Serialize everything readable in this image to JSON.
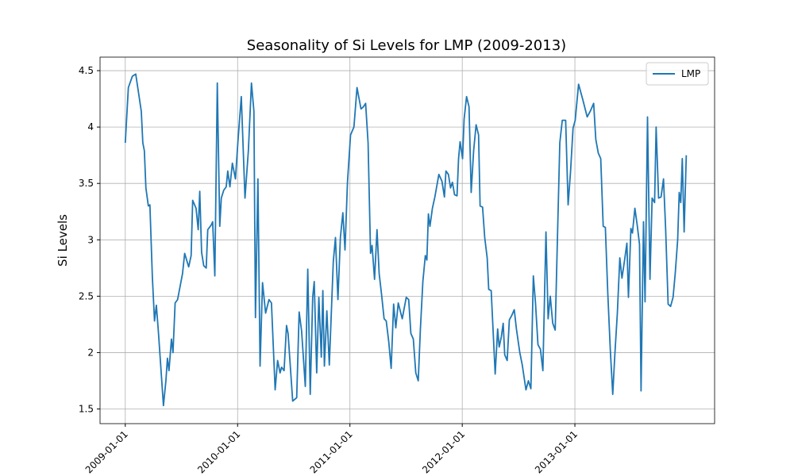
{
  "chart_data": {
    "type": "line",
    "title": "Seasonality of Si Levels for LMP (2009-2013)",
    "y_label": "Si Levels",
    "x": [
      "2009-01-01",
      "2009-01-11",
      "2009-01-24",
      "2009-02-04",
      "2009-02-22",
      "2009-02-27",
      "2009-03-04",
      "2009-03-09",
      "2009-03-17",
      "2009-03-22",
      "2009-03-30",
      "2009-04-06",
      "2009-04-12",
      "2009-04-19",
      "2009-05-05",
      "2009-05-13",
      "2009-05-18",
      "2009-05-23",
      "2009-05-31",
      "2009-06-05",
      "2009-06-12",
      "2009-06-20",
      "2009-07-06",
      "2009-07-13",
      "2009-07-26",
      "2009-08-03",
      "2009-08-08",
      "2009-08-19",
      "2009-08-26",
      "2009-08-31",
      "2009-09-06",
      "2009-09-13",
      "2009-09-21",
      "2009-09-26",
      "2009-10-07",
      "2009-10-12",
      "2009-10-19",
      "2009-10-27",
      "2009-11-04",
      "2009-11-09",
      "2009-11-17",
      "2009-11-25",
      "2009-11-30",
      "2009-12-07",
      "2009-12-15",
      "2009-12-25",
      "2010-01-02",
      "2010-01-13",
      "2010-01-25",
      "2010-02-05",
      "2010-02-15",
      "2010-02-23",
      "2010-02-28",
      "2010-03-08",
      "2010-03-15",
      "2010-03-23",
      "2010-04-02",
      "2010-04-13",
      "2010-04-21",
      "2010-05-03",
      "2010-05-11",
      "2010-05-19",
      "2010-05-24",
      "2010-06-01",
      "2010-06-09",
      "2010-06-14",
      "2010-06-29",
      "2010-07-12",
      "2010-07-20",
      "2010-07-28",
      "2010-08-09",
      "2010-08-17",
      "2010-08-25",
      "2010-09-02",
      "2010-09-07",
      "2010-09-15",
      "2010-09-22",
      "2010-09-30",
      "2010-10-05",
      "2010-10-10",
      "2010-10-18",
      "2010-10-26",
      "2010-11-08",
      "2010-11-15",
      "2010-11-23",
      "2010-12-01",
      "2010-12-09",
      "2010-12-16",
      "2010-12-24",
      "2011-01-03",
      "2011-01-14",
      "2011-01-24",
      "2011-02-06",
      "2011-02-14",
      "2011-02-21",
      "2011-03-01",
      "2011-03-09",
      "2011-03-14",
      "2011-03-22",
      "2011-03-30",
      "2011-04-06",
      "2011-04-14",
      "2011-04-22",
      "2011-04-29",
      "2011-05-07",
      "2011-05-15",
      "2011-05-23",
      "2011-05-30",
      "2011-06-07",
      "2011-06-20",
      "2011-07-03",
      "2011-07-11",
      "2011-07-18",
      "2011-07-26",
      "2011-08-03",
      "2011-08-11",
      "2011-08-18",
      "2011-08-26",
      "2011-09-03",
      "2011-09-08",
      "2011-09-13",
      "2011-09-18",
      "2011-09-26",
      "2011-10-04",
      "2011-10-17",
      "2011-10-27",
      "2011-11-04",
      "2011-11-09",
      "2011-11-17",
      "2011-11-24",
      "2011-11-30",
      "2011-12-07",
      "2011-12-15",
      "2011-12-20",
      "2011-12-25",
      "2012-01-02",
      "2012-01-07",
      "2012-01-15",
      "2012-01-23",
      "2012-01-30",
      "2012-02-07",
      "2012-02-15",
      "2012-02-23",
      "2012-02-28",
      "2012-03-07",
      "2012-03-14",
      "2012-03-22",
      "2012-03-27",
      "2012-04-04",
      "2012-04-17",
      "2012-04-25",
      "2012-04-30",
      "2012-05-07",
      "2012-05-13",
      "2012-05-18",
      "2012-05-26",
      "2012-06-02",
      "2012-06-10",
      "2012-06-18",
      "2012-06-25",
      "2012-07-06",
      "2012-07-14",
      "2012-07-26",
      "2012-08-03",
      "2012-08-11",
      "2012-08-19",
      "2012-08-26",
      "2012-09-03",
      "2012-09-11",
      "2012-09-19",
      "2012-09-29",
      "2012-10-06",
      "2012-10-13",
      "2012-10-21",
      "2012-10-29",
      "2012-11-06",
      "2012-11-13",
      "2012-11-21",
      "2012-12-02",
      "2012-12-10",
      "2012-12-18",
      "2012-12-26",
      "2013-01-02",
      "2013-01-13",
      "2013-01-26",
      "2013-02-10",
      "2013-02-20",
      "2013-03-03",
      "2013-03-10",
      "2013-03-18",
      "2013-03-26",
      "2013-04-03",
      "2013-04-10",
      "2013-04-18",
      "2013-04-26",
      "2013-05-04",
      "2013-05-11",
      "2013-05-19",
      "2013-05-27",
      "2013-06-03",
      "2013-06-11",
      "2013-06-19",
      "2013-06-24",
      "2013-07-02",
      "2013-07-07",
      "2013-07-15",
      "2013-07-23",
      "2013-07-30",
      "2013-08-04",
      "2013-08-12",
      "2013-08-17",
      "2013-08-25",
      "2013-09-02",
      "2013-09-09",
      "2013-09-17",
      "2013-09-22",
      "2013-09-30",
      "2013-10-08",
      "2013-10-16",
      "2013-10-23",
      "2013-10-31",
      "2013-11-08",
      "2013-11-16",
      "2013-11-23",
      "2013-12-01",
      "2013-12-06",
      "2013-12-11",
      "2013-12-16",
      "2013-12-22",
      "2013-12-29"
    ],
    "series": [
      {
        "name": "LMP",
        "color": "#1f77b4",
        "values": [
          3.86,
          4.35,
          4.45,
          4.47,
          4.14,
          3.86,
          3.79,
          3.46,
          3.3,
          3.31,
          2.67,
          2.28,
          2.42,
          2.17,
          1.53,
          1.75,
          1.95,
          1.84,
          2.12,
          2.0,
          2.44,
          2.47,
          2.7,
          2.88,
          2.76,
          2.86,
          3.35,
          3.28,
          3.09,
          3.43,
          2.89,
          2.77,
          2.75,
          3.09,
          3.13,
          3.16,
          2.68,
          4.39,
          3.12,
          3.37,
          3.44,
          3.47,
          3.61,
          3.47,
          3.68,
          3.54,
          3.87,
          4.27,
          3.37,
          3.79,
          4.39,
          4.14,
          2.31,
          3.54,
          1.88,
          2.62,
          2.35,
          2.47,
          2.44,
          1.67,
          1.93,
          1.82,
          1.87,
          1.84,
          2.24,
          2.17,
          1.57,
          1.6,
          2.36,
          2.19,
          1.7,
          2.74,
          1.63,
          2.49,
          2.63,
          1.82,
          2.49,
          1.96,
          2.55,
          1.88,
          2.37,
          1.89,
          2.81,
          3.02,
          2.47,
          3.02,
          3.24,
          2.91,
          3.51,
          3.93,
          4.0,
          4.35,
          4.16,
          4.18,
          4.21,
          3.86,
          2.88,
          2.95,
          2.65,
          3.09,
          2.7,
          2.51,
          2.3,
          2.28,
          2.1,
          1.86,
          2.43,
          2.22,
          2.44,
          2.3,
          2.49,
          2.47,
          2.17,
          2.12,
          1.82,
          1.75,
          2.21,
          2.63,
          2.86,
          2.82,
          3.23,
          3.12,
          3.28,
          3.38,
          3.58,
          3.52,
          3.38,
          3.61,
          3.58,
          3.46,
          3.51,
          3.4,
          3.39,
          3.72,
          3.87,
          3.72,
          4.07,
          4.27,
          4.18,
          3.42,
          3.79,
          4.02,
          3.93,
          3.3,
          3.29,
          3.02,
          2.84,
          2.56,
          2.55,
          1.81,
          2.21,
          2.05,
          2.14,
          2.26,
          1.98,
          1.93,
          2.29,
          2.33,
          2.38,
          2.21,
          2.0,
          1.89,
          1.67,
          1.75,
          1.68,
          2.68,
          2.44,
          2.07,
          2.03,
          1.84,
          3.07,
          2.3,
          2.5,
          2.26,
          2.2,
          3.09,
          3.86,
          4.06,
          4.06,
          3.31,
          3.61,
          3.99,
          4.06,
          4.38,
          4.25,
          4.09,
          4.14,
          4.21,
          3.89,
          3.77,
          3.72,
          3.12,
          3.11,
          2.52,
          2.03,
          1.63,
          1.99,
          2.35,
          2.84,
          2.66,
          2.81,
          2.97,
          2.49,
          3.1,
          3.06,
          3.28,
          3.12,
          2.96,
          1.66,
          3.16,
          2.45,
          4.09,
          2.65,
          3.37,
          3.33,
          4.0,
          3.37,
          3.38,
          3.54,
          3.09,
          2.43,
          2.41,
          2.49,
          2.7,
          3.0,
          3.42,
          3.33,
          3.72,
          3.07,
          3.75
        ]
      }
    ],
    "xlim": [
      "2008-10-11",
      "2014-03-31"
    ],
    "xticks": [
      "2009-01-01",
      "2010-01-01",
      "2011-01-01",
      "2012-01-01",
      "2013-01-01"
    ],
    "ylim": [
      1.37,
      4.62
    ],
    "yticks": [
      1.5,
      2.0,
      2.5,
      3.0,
      3.5,
      4.0,
      4.5
    ],
    "grid": true,
    "legend": "upper right"
  }
}
